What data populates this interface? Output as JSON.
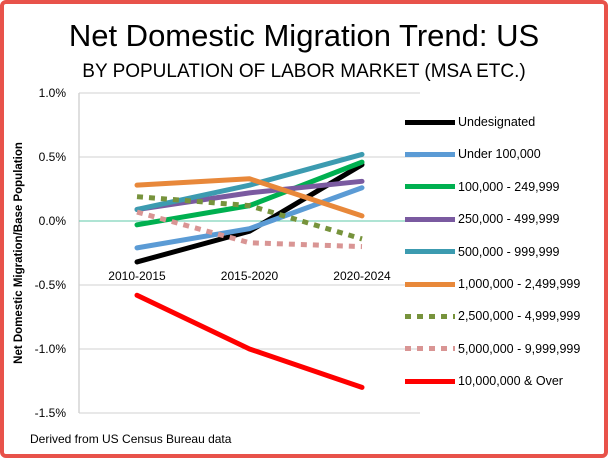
{
  "chart_data": {
    "type": "line",
    "title": "Net Domestic Migration Trend: US",
    "subtitle": "BY POPULATION OF LABOR MARKET (MSA ETC.)",
    "xlabel": "",
    "ylabel": "Net  Domestic Migration/Base Population",
    "categories": [
      "2010-2015",
      "2015-2020",
      "2020-2024"
    ],
    "ylim": [
      -1.5,
      1.0
    ],
    "yticks": [
      1.0,
      0.5,
      0.0,
      -0.5,
      -1.0,
      -1.5
    ],
    "ytick_labels": [
      "1.0%",
      "0.5%",
      "0.0%",
      "-0.5%",
      "-1.0%",
      "-1.5%"
    ],
    "grid": true,
    "legend_position": "right",
    "series": [
      {
        "name": "Undesignated",
        "color": "#000000",
        "dash": false,
        "values": [
          -0.32,
          -0.08,
          0.44
        ]
      },
      {
        "name": "Under 100,000",
        "color": "#5b9bd5",
        "dash": false,
        "values": [
          -0.21,
          -0.06,
          0.26
        ]
      },
      {
        "name": "100,000 - 249,999",
        "color": "#00b050",
        "dash": false,
        "values": [
          -0.03,
          0.12,
          0.46
        ]
      },
      {
        "name": "250,000 - 499,999",
        "color": "#7a5aa0",
        "dash": false,
        "values": [
          0.09,
          0.22,
          0.31
        ]
      },
      {
        "name": "500,000 - 999,999",
        "color": "#3c9bb0",
        "dash": false,
        "values": [
          0.09,
          0.28,
          0.52
        ]
      },
      {
        "name": "1,000,000 - 2,499,999",
        "color": "#e8883a",
        "dash": false,
        "values": [
          0.28,
          0.33,
          0.04
        ]
      },
      {
        "name": "2,500,000 - 4,999,999",
        "color": "#77933c",
        "dash": true,
        "values": [
          0.19,
          0.12,
          -0.14
        ]
      },
      {
        "name": "5,000,000 - 9,999,999",
        "color": "#d99594",
        "dash": true,
        "values": [
          0.07,
          -0.17,
          -0.2
        ]
      },
      {
        "name": "10,000,000 & Over",
        "color": "#ff0000",
        "dash": false,
        "values": [
          -0.58,
          -1.0,
          -1.3
        ]
      }
    ]
  },
  "footer": "Derived from US Census Bureau data"
}
